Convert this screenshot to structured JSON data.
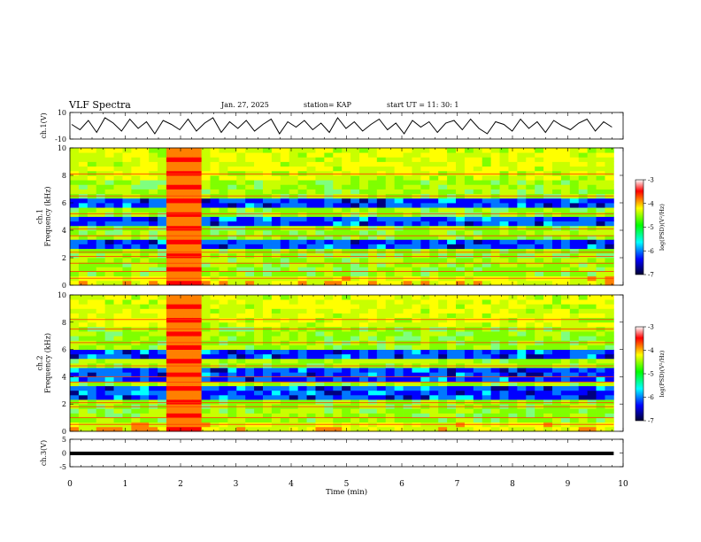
{
  "header": {
    "title": "VLF Spectra",
    "date": "Jan. 27, 2025",
    "station": "station= KAP",
    "start": "start  UT =   11: 30: 1"
  },
  "colors": {
    "trace": "#000000",
    "colormap": [
      "#00007f",
      "#0000ff",
      "#00ffff",
      "#7fff00",
      "#ffff00",
      "#ff0000",
      "#7f0000"
    ]
  },
  "chart_data": [
    {
      "type": "line",
      "name": "ch1-waveform",
      "ylabel": "ch.1(V)",
      "ylim": [
        -10,
        10
      ],
      "y_ticks": [
        "10",
        "-10"
      ],
      "x_range_min": [
        0,
        9.83
      ],
      "y": [
        1,
        -3,
        4,
        -5,
        6,
        2,
        -4,
        5,
        -2,
        3,
        -6,
        4,
        1,
        -3,
        5,
        -4,
        2,
        6,
        -5,
        3,
        -2,
        4,
        -4,
        1,
        5,
        -6,
        3,
        -1,
        4,
        -3,
        2,
        -5,
        6,
        -2,
        3,
        -4,
        1,
        5,
        -3,
        2,
        -6,
        4,
        -1,
        3,
        -5,
        2,
        4,
        -3,
        5,
        -2,
        -6,
        3,
        1,
        -4,
        5,
        -2,
        3,
        -5,
        4,
        0,
        -3,
        2,
        5,
        -4,
        3,
        -1
      ]
    },
    {
      "type": "heatmap",
      "name": "ch1-spectrogram",
      "ylabel": "ch.1\nFrequency  (kHz)",
      "ylim": [
        0,
        10
      ],
      "y_ticks": [
        "0",
        "2",
        "4",
        "6",
        "8",
        "10"
      ],
      "x_range_min": [
        0,
        9.83
      ],
      "colorbar": {
        "label": "log(PSD)(V²/Hz)",
        "range": [
          -7,
          -3
        ],
        "ticks": [
          "-3",
          "-4",
          "-5",
          "-6",
          "-7"
        ]
      },
      "low_power_bands_khz": [
        [
          2.6,
          3.4
        ],
        [
          4.4,
          5.0
        ],
        [
          5.6,
          6.2
        ]
      ],
      "spectral_lines_khz": [
        0.5,
        1.0,
        1.6,
        2.1,
        2.4,
        3.6,
        4.1,
        5.2,
        6.5,
        8.1
      ],
      "interference_interval_min": [
        1.72,
        2.32
      ]
    },
    {
      "type": "heatmap",
      "name": "ch2-spectrogram",
      "ylabel": "ch.2\nFrequency  (kHz)",
      "ylim": [
        0,
        10
      ],
      "y_ticks": [
        "0",
        "2",
        "4",
        "6",
        "8",
        "10"
      ],
      "x_range_min": [
        0,
        9.83
      ],
      "colorbar": {
        "label": "log(PSD)(V²/Hz)",
        "range": [
          -7,
          -3
        ],
        "ticks": [
          "-3",
          "-4",
          "-5",
          "-6",
          "-7"
        ]
      },
      "low_power_bands_khz": [
        [
          2.4,
          3.2
        ],
        [
          3.8,
          4.5
        ],
        [
          5.2,
          6.0
        ]
      ],
      "spectral_lines_khz": [
        0.5,
        1.0,
        1.8,
        2.1,
        3.6,
        4.0,
        4.8,
        6.5,
        7.5,
        8.2
      ],
      "interference_interval_min": [
        1.72,
        2.32
      ]
    },
    {
      "type": "line",
      "name": "ch3-waveform",
      "ylabel": "ch.3(V)",
      "ylim": [
        -5,
        5
      ],
      "y_ticks": [
        "5",
        "0",
        "-5"
      ],
      "x_range_min": [
        0,
        9.83
      ],
      "band_v": [
        -0.8,
        0.5
      ]
    }
  ],
  "x_axis": {
    "label": "Time  (min)",
    "range": [
      0,
      10
    ],
    "ticks": [
      "0",
      "1",
      "2",
      "3",
      "4",
      "5",
      "6",
      "7",
      "8",
      "9",
      "10"
    ]
  }
}
